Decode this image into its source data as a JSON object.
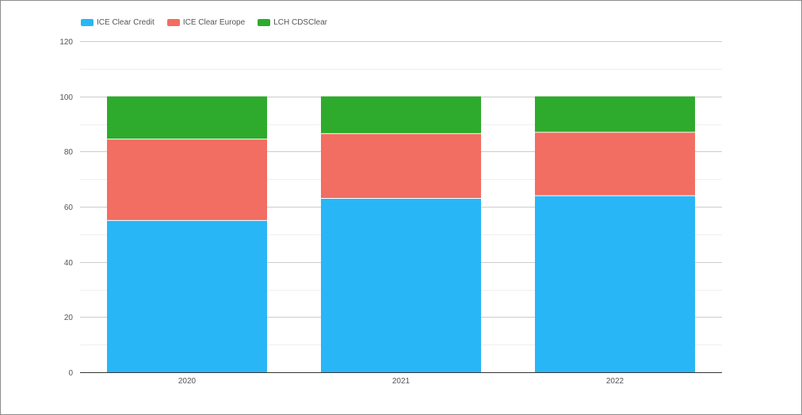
{
  "chart_data": {
    "type": "bar",
    "stacked": true,
    "categories": [
      "2020",
      "2021",
      "2022"
    ],
    "series": [
      {
        "name": "ICE Clear Credit",
        "color": "#29b6f6",
        "values": [
          55,
          63,
          64
        ]
      },
      {
        "name": "ICE Clear Europe",
        "color": "#f26d62",
        "values": [
          29.5,
          23.5,
          23
        ]
      },
      {
        "name": "LCH CDSClear",
        "color": "#2eab2c",
        "values": [
          15.5,
          13.5,
          13
        ]
      }
    ],
    "ylim": [
      0,
      120
    ],
    "yticks": [
      0,
      20,
      40,
      60,
      80,
      100,
      120
    ],
    "grid": true,
    "legend_position": "top-left",
    "title": "",
    "xlabel": "",
    "ylabel": ""
  }
}
